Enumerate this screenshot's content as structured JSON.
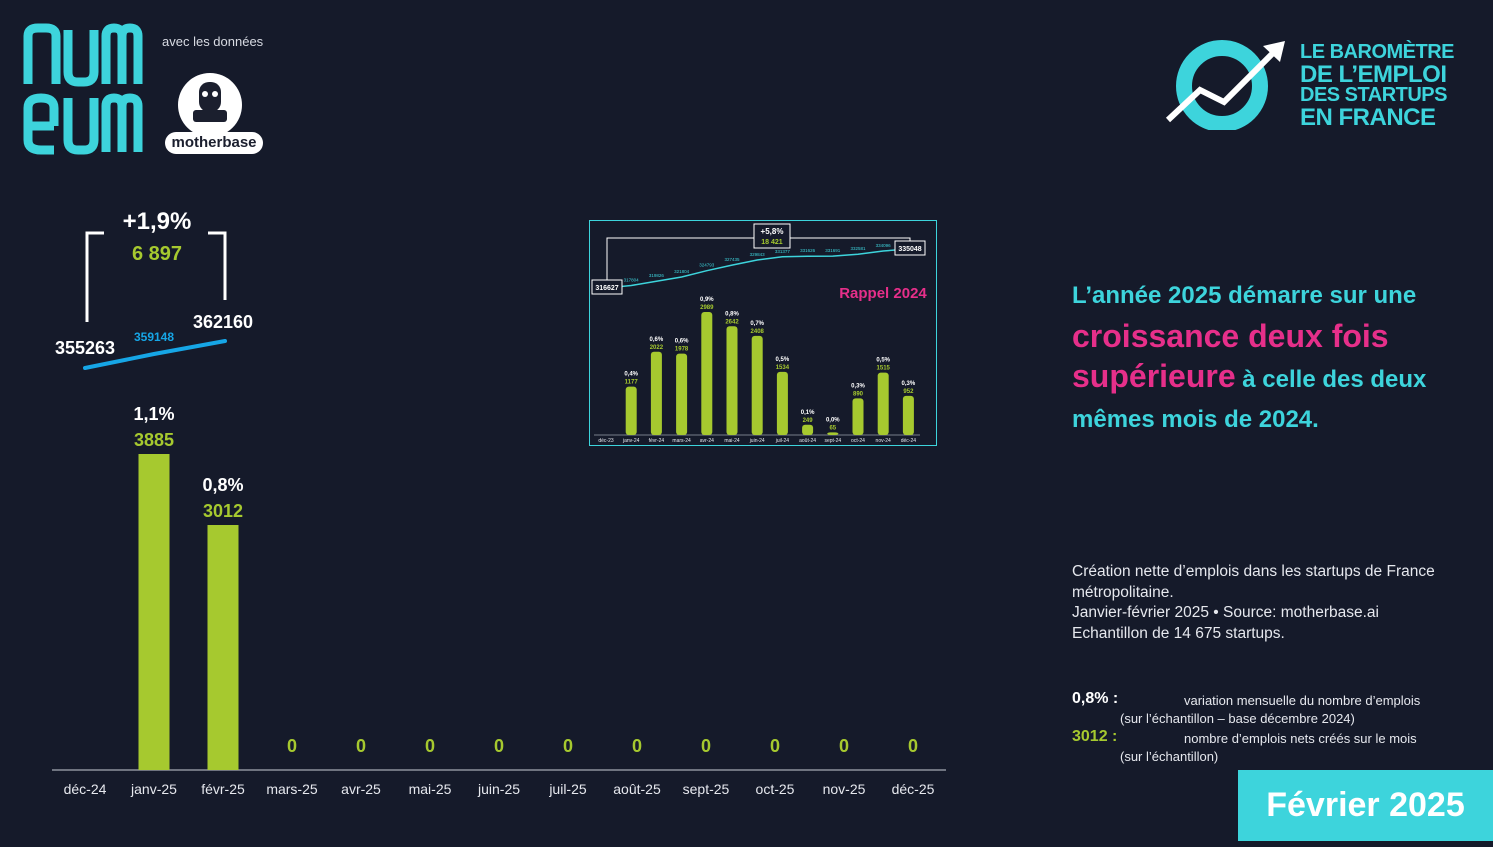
{
  "header": {
    "numeum_logo_text": "numeum",
    "data_credit": "avec les données",
    "motherbase_logo_text": "motherbase",
    "barometer_title": [
      "LE BAROMÈTRE",
      "DE L’EMPLOI",
      "DES STARTUPS",
      "EN FRANCE"
    ]
  },
  "chart_data": [
    {
      "type": "bar",
      "categories": [
        "déc-24",
        "janv-25",
        "févr-25",
        "mars-25",
        "avr-25",
        "mai-25",
        "juin-25",
        "juil-25",
        "août-25",
        "sept-25",
        "oct-25",
        "nov-25",
        "déc-25"
      ],
      "values": [
        null,
        3885,
        3012,
        0,
        0,
        0,
        0,
        0,
        0,
        0,
        0,
        0,
        0
      ],
      "percent_labels": [
        "",
        "1,1%",
        "0,8%",
        "",
        "",
        "",
        "",
        "",
        "",
        "",
        "",
        "",
        ""
      ],
      "value_labels": [
        "",
        "3885",
        "3012",
        "0",
        "0",
        "0",
        "0",
        "0",
        "0",
        "0",
        "0",
        "0",
        "0"
      ],
      "ylim": [
        0,
        5000
      ],
      "cumulative_line": {
        "points": [
          {
            "x": "déc-24",
            "value": 355263,
            "label": "355263"
          },
          {
            "x": "janv-25",
            "value": 359148,
            "label": "359148"
          },
          {
            "x": "févr-25",
            "value": 362160,
            "label": "362160"
          }
        ],
        "bracket": {
          "percent": "+1,9%",
          "jobs": "6 897"
        }
      },
      "colors": {
        "bar": "#a6c92f",
        "line": "#16a6e6",
        "axis": "#6f7480",
        "label": "#ffffff"
      }
    },
    {
      "type": "bar",
      "title": "Rappel 2024",
      "categories": [
        "déc-23",
        "janv-24",
        "févr-24",
        "mars-24",
        "avr-24",
        "mai-24",
        "juin-24",
        "juil-24",
        "août-24",
        "sept-24",
        "oct-24",
        "nov-24",
        "déc-24"
      ],
      "values": [
        null,
        1177,
        2022,
        1978,
        2989,
        2642,
        2408,
        1534,
        249,
        65,
        890,
        1515,
        952
      ],
      "percent_labels": [
        "",
        "0,4%",
        "0,6%",
        "0,6%",
        "0,9%",
        "0,8%",
        "0,7%",
        "0,5%",
        "0,1%",
        "0,0%",
        "0,3%",
        "0,5%",
        "0,3%"
      ],
      "value_labels": [
        "",
        "1177",
        "2022",
        "1978",
        "2989",
        "2642",
        "2408",
        "1534",
        "249",
        "65",
        "890",
        "1515",
        "952"
      ],
      "ylim": [
        0,
        3500
      ],
      "cumulative_line": {
        "values": [
          316627,
          317804,
          319826,
          321804,
          324793,
          327435,
          329843,
          331377,
          331626,
          331691,
          332581,
          334096,
          335048
        ],
        "labels": [
          "316627",
          "317804",
          "319826",
          "321804",
          "324793",
          "327435",
          "329843",
          "331377",
          "331626",
          "331691",
          "332581",
          "334096",
          "335048"
        ],
        "bracket": {
          "percent": "+5,8%",
          "jobs": "18 421"
        }
      },
      "colors": {
        "bar": "#a6c92f",
        "line": "#3dd4dc",
        "title": "#e62f8a",
        "frame": "#3dd4dc"
      }
    }
  ],
  "headline": {
    "line1": "L’année 2025 démarre sur une",
    "highlight1": "croissance deux fois",
    "highlight2": "supérieure",
    "line3": " à celle des deux",
    "line4": "mêmes mois de 2024."
  },
  "source": {
    "line1": "Création nette d’emplois dans les startups de France métropolitaine.",
    "line2": "Janvier-février 2025 • Source: motherbase.ai",
    "line3": "Echantillon de 14 675 startups."
  },
  "legend": [
    {
      "key": "0,8% :",
      "desc": "variation mensuelle du nombre d’emplois",
      "sub": "(sur l’échantillon – base décembre 2024)"
    },
    {
      "key": "3012 :",
      "desc": "nombre d’emplois nets créés sur le mois",
      "sub": "(sur l’échantillon)"
    }
  ],
  "period": "Février 2025",
  "colors": {
    "background": "#151a2a",
    "accent_cyan": "#3dd4dc",
    "accent_pink": "#e62f8a",
    "accent_green": "#a6c92f"
  }
}
